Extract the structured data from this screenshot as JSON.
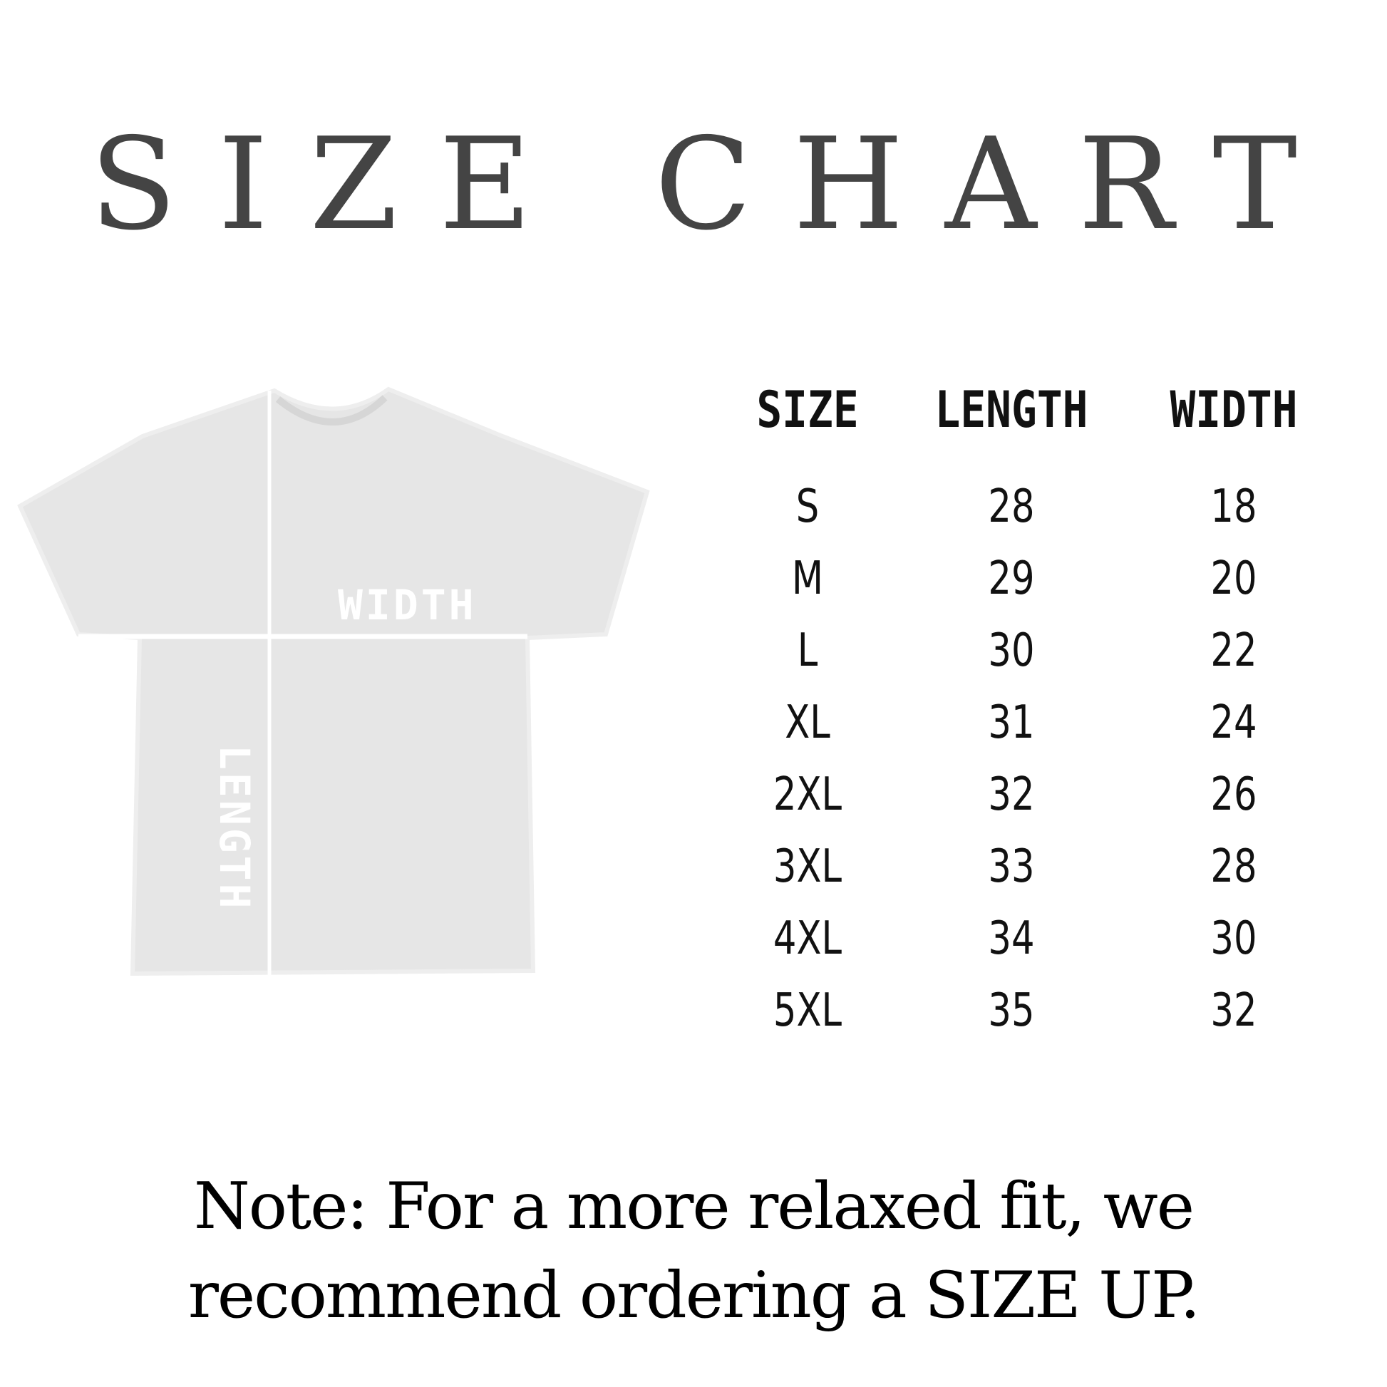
{
  "title": "SIZE CHART",
  "diagram": {
    "width_label": "WIDTH",
    "length_label": "LENGTH",
    "shirt_color": "#e6e6e6"
  },
  "table": {
    "headers": [
      "SIZE",
      "LENGTH",
      "WIDTH"
    ],
    "rows": [
      [
        "S",
        "28",
        "18"
      ],
      [
        "M",
        "29",
        "20"
      ],
      [
        "L",
        "30",
        "22"
      ],
      [
        "XL",
        "31",
        "24"
      ],
      [
        "2XL",
        "32",
        "26"
      ],
      [
        "3XL",
        "33",
        "28"
      ],
      [
        "4XL",
        "34",
        "30"
      ],
      [
        "5XL",
        "35",
        "32"
      ]
    ]
  },
  "note": {
    "line1": "Note: For a more relaxed fit, we",
    "line2": "recommend ordering a SIZE UP."
  }
}
